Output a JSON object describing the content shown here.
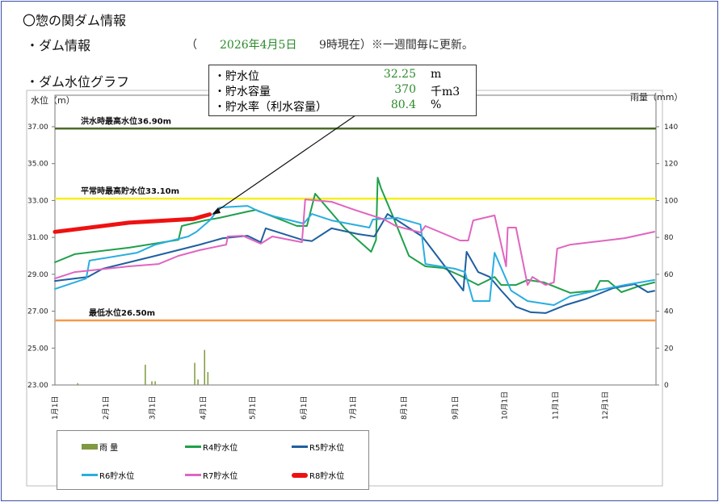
{
  "header": {
    "title": "〇惣の関ダム情報",
    "dam_info_label": "・ダム情報",
    "paren_open": "（",
    "date": "2026年4月5日",
    "time_note": "9時現在）※一週間毎に更新。",
    "graph_label": "・ダム水位グラフ"
  },
  "info_box": {
    "rows": [
      {
        "label": "・貯水位",
        "value": "32.25",
        "unit": "m"
      },
      {
        "label": "・貯水容量",
        "value": "370",
        "unit": "千m3"
      },
      {
        "label": "・貯水率（利水容量）",
        "value": "80.4",
        "unit": "%"
      }
    ]
  },
  "colors": {
    "rain": "#7f9a3f",
    "R4": "#1fa04a",
    "R5": "#1f5fa0",
    "R6": "#29aee0",
    "R7": "#e065c0",
    "R8": "#ee1111",
    "flood": "#4d6b2a",
    "normal": "#f4f01a",
    "min": "#f59a4a"
  },
  "chart_data": {
    "type": "line",
    "ylabel": "水位（m）",
    "y2label": "雨量（mm）",
    "ylim": [
      23,
      37
    ],
    "y2lim": [
      0,
      140
    ],
    "yticks": [
      "23.00",
      "25.00",
      "27.00",
      "29.00",
      "31.00",
      "33.00",
      "35.00",
      "37.00"
    ],
    "y2ticks": [
      "0",
      "20",
      "40",
      "60",
      "80",
      "100",
      "120",
      "140"
    ],
    "xticks": [
      "1月1日",
      "2月1日",
      "3月1日",
      "4月1日",
      "5月1日",
      "6月1日",
      "7月1日",
      "8月1日",
      "9月1日",
      "10月1日",
      "11月1日",
      "12月1日"
    ],
    "reference_lines": [
      {
        "label": "洪水時最高水位36.90m",
        "value": 36.9,
        "color": "#4d6b2a"
      },
      {
        "label": "平常時最高貯水位33.10m",
        "value": 33.1,
        "color": "#f4f01a"
      },
      {
        "label": "最低水位26.50m",
        "value": 26.5,
        "color": "#f59a4a"
      }
    ],
    "rain": {
      "name": "雨 量",
      "points": [
        [
          "01-15",
          1
        ],
        [
          "02-25",
          11
        ],
        [
          "03-01",
          2
        ],
        [
          "03-03",
          2
        ],
        [
          "03-27",
          12
        ],
        [
          "03-29",
          3
        ],
        [
          "04-02",
          19
        ],
        [
          "04-04",
          7
        ]
      ]
    },
    "series": [
      {
        "name": "R4貯水位",
        "key": "R4",
        "points": [
          [
            "01-01",
            29.65
          ],
          [
            "01-13",
            30.09
          ],
          [
            "02-15",
            30.44
          ],
          [
            "03-17",
            30.87
          ],
          [
            "03-19",
            31.62
          ],
          [
            "04-02",
            31.92
          ],
          [
            "04-11",
            32.06
          ],
          [
            "04-28",
            32.4
          ],
          [
            "05-03",
            32.49
          ],
          [
            "05-28",
            31.62
          ],
          [
            "06-03",
            31.62
          ],
          [
            "06-08",
            33.37
          ],
          [
            "06-26",
            31.49
          ],
          [
            "07-12",
            30.22
          ],
          [
            "07-15",
            30.87
          ],
          [
            "07-16",
            34.24
          ],
          [
            "07-18",
            33.67
          ],
          [
            "07-25",
            32.19
          ],
          [
            "08-04",
            30.0
          ],
          [
            "08-14",
            29.43
          ],
          [
            "08-25",
            29.34
          ],
          [
            "09-06",
            28.86
          ],
          [
            "09-09",
            28.69
          ],
          [
            "09-15",
            28.42
          ],
          [
            "09-25",
            28.86
          ],
          [
            "09-29",
            28.42
          ],
          [
            "10-08",
            28.42
          ],
          [
            "10-15",
            28.69
          ],
          [
            "10-25",
            28.56
          ],
          [
            "11-10",
            27.99
          ],
          [
            "11-25",
            28.12
          ],
          [
            "11-28",
            28.64
          ],
          [
            "12-03",
            28.64
          ],
          [
            "12-11",
            28.03
          ],
          [
            "12-21",
            28.34
          ],
          [
            "12-31",
            28.56
          ]
        ]
      },
      {
        "name": "R5貯水位",
        "key": "R5",
        "points": [
          [
            "01-01",
            28.64
          ],
          [
            "01-21",
            28.86
          ],
          [
            "01-30",
            29.3
          ],
          [
            "03-03",
            30.0
          ],
          [
            "03-30",
            30.61
          ],
          [
            "04-13",
            30.96
          ],
          [
            "04-28",
            31.09
          ],
          [
            "05-06",
            30.74
          ],
          [
            "05-09",
            31.49
          ],
          [
            "05-31",
            30.87
          ],
          [
            "06-06",
            30.8
          ],
          [
            "06-18",
            31.49
          ],
          [
            "07-04",
            31.18
          ],
          [
            "07-14",
            31.05
          ],
          [
            "07-22",
            32.27
          ],
          [
            "08-12",
            31.05
          ],
          [
            "09-06",
            28.12
          ],
          [
            "09-08",
            30.22
          ],
          [
            "09-15",
            29.12
          ],
          [
            "09-22",
            28.86
          ],
          [
            "09-29",
            28.12
          ],
          [
            "10-08",
            27.24
          ],
          [
            "10-17",
            26.94
          ],
          [
            "10-26",
            26.9
          ],
          [
            "11-07",
            27.33
          ],
          [
            "11-20",
            27.68
          ],
          [
            "12-06",
            28.25
          ],
          [
            "12-19",
            28.47
          ],
          [
            "12-27",
            28.03
          ],
          [
            "12-31",
            28.1
          ]
        ]
      },
      {
        "name": "R6貯水位",
        "key": "R6",
        "points": [
          [
            "01-01",
            28.2
          ],
          [
            "01-20",
            28.77
          ],
          [
            "01-22",
            29.74
          ],
          [
            "02-20",
            30.17
          ],
          [
            "03-03",
            30.61
          ],
          [
            "03-23",
            31.05
          ],
          [
            "03-28",
            31.31
          ],
          [
            "04-05",
            31.92
          ],
          [
            "04-11",
            32.62
          ],
          [
            "04-28",
            32.71
          ],
          [
            "05-05",
            32.4
          ],
          [
            "05-14",
            32.14
          ],
          [
            "06-01",
            31.75
          ],
          [
            "06-06",
            32.27
          ],
          [
            "06-18",
            31.92
          ],
          [
            "07-11",
            31.53
          ],
          [
            "07-13",
            31.97
          ],
          [
            "07-28",
            32.06
          ],
          [
            "08-11",
            31.7
          ],
          [
            "08-14",
            29.56
          ],
          [
            "09-01",
            29.3
          ],
          [
            "09-07",
            29.12
          ],
          [
            "09-12",
            27.55
          ],
          [
            "09-22",
            27.55
          ],
          [
            "09-25",
            30.17
          ],
          [
            "10-05",
            28.12
          ],
          [
            "10-15",
            27.55
          ],
          [
            "10-31",
            27.33
          ],
          [
            "11-10",
            27.81
          ],
          [
            "11-26",
            28.12
          ],
          [
            "12-13",
            28.42
          ],
          [
            "12-31",
            28.69
          ]
        ]
      },
      {
        "name": "R7貯水位",
        "key": "R7",
        "points": [
          [
            "01-01",
            28.77
          ],
          [
            "01-13",
            29.12
          ],
          [
            "02-15",
            29.43
          ],
          [
            "03-05",
            29.56
          ],
          [
            "03-17",
            30.0
          ],
          [
            "03-30",
            30.31
          ],
          [
            "04-15",
            30.61
          ],
          [
            "04-16",
            31.05
          ],
          [
            "04-25",
            31.09
          ],
          [
            "05-06",
            30.66
          ],
          [
            "05-13",
            31.05
          ],
          [
            "05-31",
            30.74
          ],
          [
            "06-02",
            33.06
          ],
          [
            "06-18",
            32.93
          ],
          [
            "07-02",
            32.49
          ],
          [
            "07-20",
            31.97
          ],
          [
            "07-27",
            31.62
          ],
          [
            "08-11",
            31.27
          ],
          [
            "08-14",
            31.62
          ],
          [
            "09-04",
            30.83
          ],
          [
            "09-09",
            30.83
          ],
          [
            "09-12",
            31.92
          ],
          [
            "09-25",
            32.19
          ],
          [
            "10-02",
            29.43
          ],
          [
            "10-03",
            31.53
          ],
          [
            "10-08",
            31.53
          ],
          [
            "10-15",
            28.42
          ],
          [
            "10-18",
            28.86
          ],
          [
            "10-26",
            28.42
          ],
          [
            "10-31",
            28.56
          ],
          [
            "11-02",
            30.39
          ],
          [
            "11-10",
            30.61
          ],
          [
            "12-13",
            30.96
          ],
          [
            "12-31",
            31.31
          ]
        ]
      },
      {
        "name": "R8貯水位",
        "key": "R8",
        "points": [
          [
            "01-01",
            31.3
          ],
          [
            "02-15",
            31.8
          ],
          [
            "03-26",
            32.0
          ],
          [
            "04-05",
            32.25
          ]
        ]
      }
    ]
  }
}
